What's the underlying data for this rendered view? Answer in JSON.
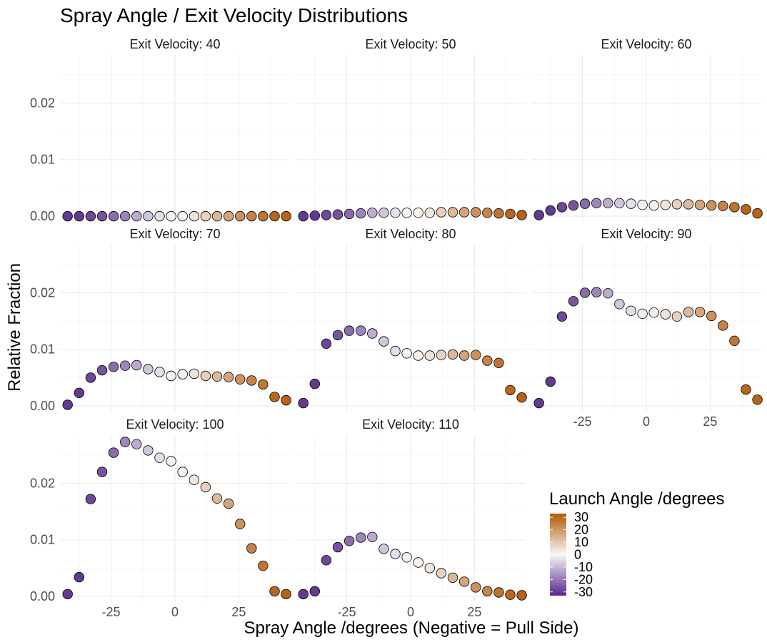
{
  "chart_data": {
    "type": "scatter",
    "title": "Spray Angle / Exit Velocity Distributions",
    "xlabel": "Spray Angle /degrees (Negative = Pull Side)",
    "ylabel": "Relative Fraction",
    "xlim": [
      -45,
      45
    ],
    "ylim": [
      -0.001,
      0.0285
    ],
    "x_ticks": [
      -25,
      0,
      25
    ],
    "x_tick_labels": [
      "-25",
      "0",
      "25"
    ],
    "y_ticks": [
      0.0,
      0.01,
      0.02
    ],
    "y_tick_labels": [
      "0.00",
      "0.01",
      "0.02"
    ],
    "grid": true,
    "x": [
      -42,
      -37.5,
      -33,
      -28.5,
      -24,
      -19.5,
      -15,
      -10.5,
      -6,
      -1.5,
      3,
      7.5,
      12,
      16.5,
      21,
      25.5,
      30,
      34.5,
      39,
      43.5
    ],
    "color_values": [
      -30,
      -30,
      -28,
      -26,
      -22,
      -18,
      -12,
      -8,
      -4,
      -1,
      1,
      4,
      8,
      13,
      17,
      21,
      24,
      27,
      30,
      31
    ],
    "legend": {
      "title": "Launch Angle /degrees",
      "labels": [
        "30",
        "20",
        "10",
        "0",
        "-10",
        "-20",
        "-30"
      ],
      "values": [
        30,
        20,
        10,
        0,
        -10,
        -20,
        -30
      ],
      "range": [
        -33,
        33
      ],
      "color_low": "#542788",
      "color_mid": "#f7f7f7",
      "color_high": "#b35806",
      "placement": "bottom-right"
    },
    "panels": [
      {
        "label": "Exit Velocity: 40",
        "values": [
          0.0,
          0.0,
          0.0,
          0.0,
          0.0,
          0.0,
          0.0,
          0.0,
          0.0,
          0.0,
          0.0,
          0.0,
          0.0,
          0.0,
          0.0,
          0.0,
          0.0,
          0.0,
          0.0,
          0.0
        ]
      },
      {
        "label": "Exit Velocity: 50",
        "values": [
          0.0,
          0.0001,
          0.0002,
          0.0003,
          0.0004,
          0.0005,
          0.0006,
          0.0006,
          0.0006,
          0.0006,
          0.0006,
          0.0006,
          0.0007,
          0.0007,
          0.0007,
          0.0007,
          0.0006,
          0.0005,
          0.0004,
          0.0002
        ]
      },
      {
        "label": "Exit Velocity: 60",
        "values": [
          0.0002,
          0.001,
          0.0016,
          0.0019,
          0.0022,
          0.0023,
          0.0023,
          0.0023,
          0.0022,
          0.002,
          0.0019,
          0.002,
          0.0021,
          0.0021,
          0.002,
          0.0019,
          0.0018,
          0.0016,
          0.0012,
          0.0005
        ]
      },
      {
        "label": "Exit Velocity: 70",
        "values": [
          0.0002,
          0.0023,
          0.005,
          0.0063,
          0.0069,
          0.0071,
          0.0072,
          0.0065,
          0.006,
          0.0053,
          0.0056,
          0.0057,
          0.0053,
          0.0052,
          0.0051,
          0.0047,
          0.0045,
          0.0038,
          0.0016,
          0.001
        ]
      },
      {
        "label": "Exit Velocity: 80",
        "values": [
          0.0005,
          0.0039,
          0.011,
          0.0125,
          0.0133,
          0.0133,
          0.0128,
          0.0114,
          0.0097,
          0.0093,
          0.0089,
          0.0089,
          0.009,
          0.0091,
          0.0089,
          0.009,
          0.008,
          0.0076,
          0.0028,
          0.0015
        ]
      },
      {
        "label": "Exit Velocity: 90",
        "values": [
          0.0005,
          0.0043,
          0.0158,
          0.0185,
          0.02,
          0.0201,
          0.0199,
          0.018,
          0.0168,
          0.0163,
          0.0165,
          0.0162,
          0.0158,
          0.0166,
          0.0166,
          0.0159,
          0.0142,
          0.0115,
          0.0029,
          0.0011
        ]
      },
      {
        "label": "Exit Velocity: 100",
        "values": [
          0.0004,
          0.0034,
          0.0172,
          0.022,
          0.0254,
          0.0273,
          0.0269,
          0.0258,
          0.0245,
          0.0239,
          0.022,
          0.0206,
          0.0193,
          0.0173,
          0.0164,
          0.0128,
          0.0085,
          0.0054,
          0.0009,
          0.0004
        ]
      },
      {
        "label": "Exit Velocity: 110",
        "values": [
          0.0004,
          0.0009,
          0.0064,
          0.0087,
          0.0098,
          0.0104,
          0.0105,
          0.0084,
          0.0075,
          0.0069,
          0.006,
          0.005,
          0.0041,
          0.0033,
          0.0026,
          0.0016,
          0.0009,
          0.0007,
          0.0003,
          0.0002
        ]
      }
    ]
  }
}
